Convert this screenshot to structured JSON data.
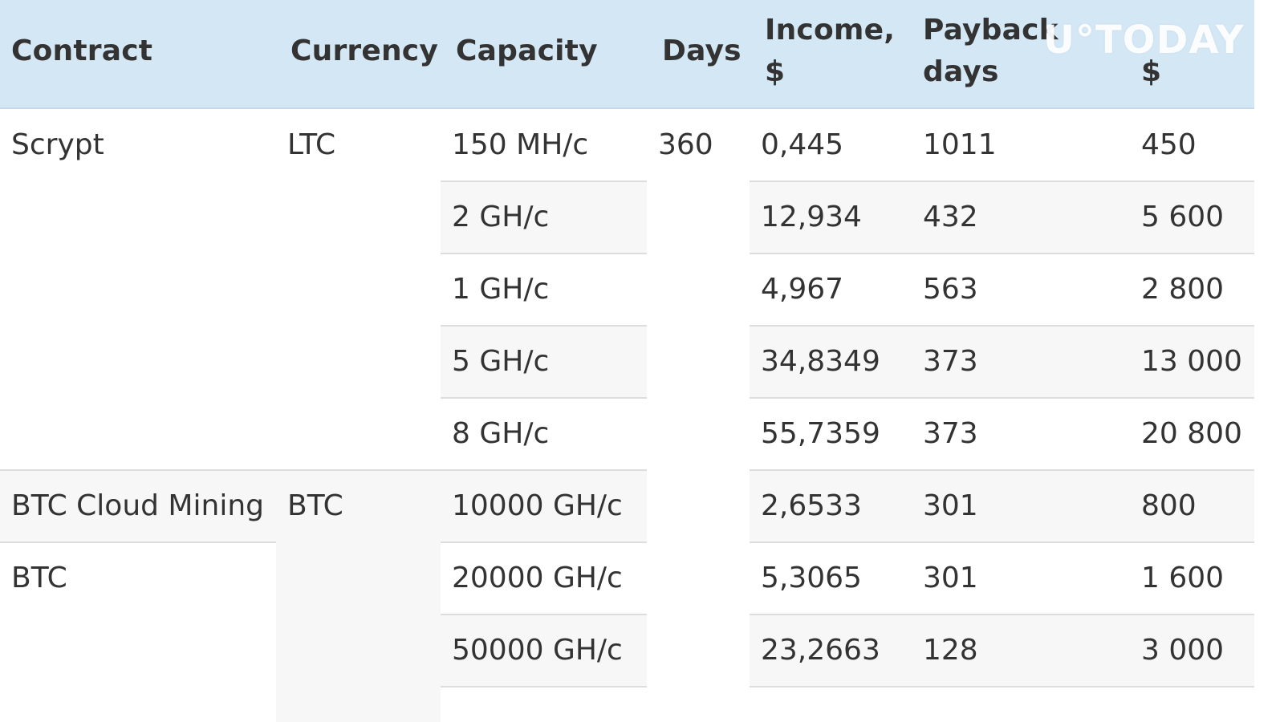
{
  "table": {
    "headers": {
      "contract": "Contract",
      "currency": "Currency",
      "capacity": "Capacity",
      "days": "Days",
      "income_line1": "Income,",
      "income_line2": "$",
      "payback_line1": "Payback",
      "payback_line2": "days",
      "price_line2": "$"
    },
    "rows": [
      {
        "contract": "Scrypt",
        "currency": "LTC",
        "capacity": "150 MH/c",
        "days": "360",
        "income": "0,445",
        "payback": "1011",
        "price": "450"
      },
      {
        "contract": "",
        "currency": "",
        "capacity": "2 GH/c",
        "days": "",
        "income": "12,934",
        "payback": "432",
        "price": "5 600"
      },
      {
        "contract": "",
        "currency": "",
        "capacity": "1 GH/c",
        "days": "",
        "income": "4,967",
        "payback": "563",
        "price": "2 800"
      },
      {
        "contract": "",
        "currency": "",
        "capacity": "5 GH/c",
        "days": "",
        "income": "34,8349",
        "payback": "373",
        "price": "13 000"
      },
      {
        "contract": "",
        "currency": "",
        "capacity": "8 GH/c",
        "days": "",
        "income": "55,7359",
        "payback": "373",
        "price": "20 800"
      },
      {
        "contract": "BTC Cloud Mining",
        "currency": "BTC",
        "capacity": "10000 GH/c",
        "days": "",
        "income": "2,6533",
        "payback": "301",
        "price": "800"
      },
      {
        "contract": "BTC",
        "currency": "",
        "capacity": "20000 GH/c",
        "days": "",
        "income": "5,3065",
        "payback": "301",
        "price": "1 600"
      },
      {
        "contract": "",
        "currency": "",
        "capacity": "50000 GH/c",
        "days": "",
        "income": "23,2663",
        "payback": "128",
        "price": "3 000"
      }
    ]
  },
  "watermark": "U°TODAY"
}
